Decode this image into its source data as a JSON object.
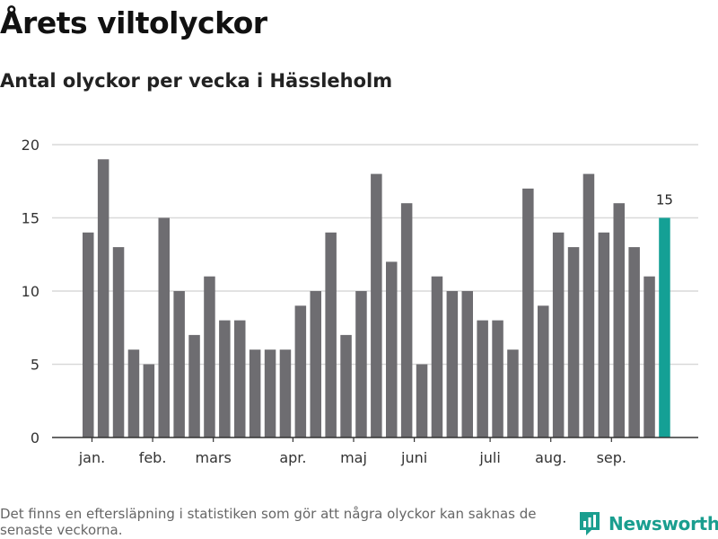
{
  "title": "Årets viltolyckor",
  "subtitle": "Antal olyckor per vecka i Hässleholm",
  "footnote": "Det finns en eftersläpning i statistiken som gör att några olyckor kan saknas de senaste veckorna.",
  "brand": {
    "name": "Newsworthy",
    "icon": "newsworthy-logo-icon"
  },
  "colors": {
    "bar": "#6e6d71",
    "highlight": "#14a095",
    "grid": "#d9d9d9",
    "axis": "#333333",
    "brand": "#1a9e8f"
  },
  "chart_data": {
    "type": "bar",
    "title": "",
    "xlabel": "",
    "ylabel": "",
    "ylim": [
      0,
      20
    ],
    "yticks": [
      0,
      5,
      10,
      15,
      20
    ],
    "grid": true,
    "values": [
      14,
      19,
      13,
      6,
      5,
      15,
      10,
      7,
      11,
      8,
      8,
      6,
      6,
      6,
      9,
      10,
      14,
      7,
      10,
      18,
      12,
      16,
      5,
      11,
      10,
      10,
      8,
      8,
      6,
      17,
      9,
      14,
      13,
      18,
      14,
      16,
      13,
      11,
      15
    ],
    "highlight_index": 38,
    "data_labels": [
      {
        "index": 38,
        "text": "15"
      }
    ],
    "month_labels": [
      {
        "label": "jan.",
        "bar_index": 0.25
      },
      {
        "label": "feb.",
        "bar_index": 4.25
      },
      {
        "label": "mars",
        "bar_index": 8.25
      },
      {
        "label": "apr.",
        "bar_index": 13.5
      },
      {
        "label": "maj",
        "bar_index": 17.5
      },
      {
        "label": "juni",
        "bar_index": 21.5
      },
      {
        "label": "juli",
        "bar_index": 26.5
      },
      {
        "label": "aug.",
        "bar_index": 30.5
      },
      {
        "label": "sep.",
        "bar_index": 34.5
      }
    ]
  }
}
